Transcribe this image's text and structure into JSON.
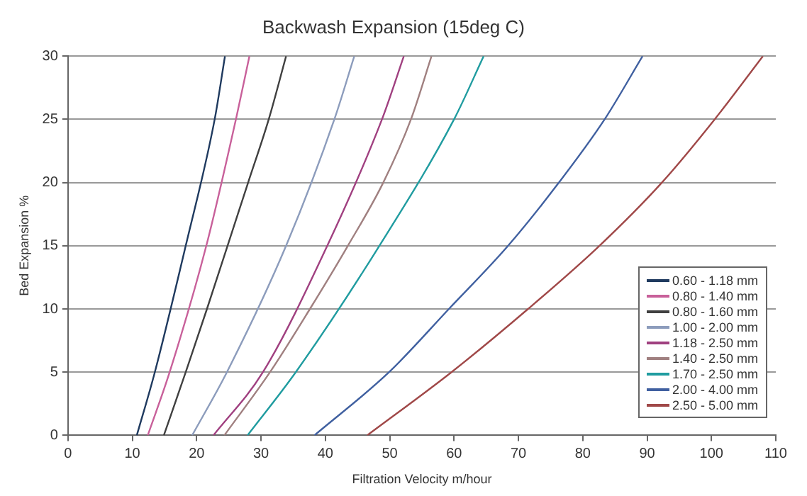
{
  "chart_data": {
    "type": "line",
    "title": "Backwash Expansion (15deg C)",
    "xlabel": "Filtration Velocity m/hour",
    "ylabel": "Bed Expansion %",
    "xlim": [
      0,
      110
    ],
    "xticks": [
      0,
      10,
      20,
      30,
      40,
      50,
      60,
      70,
      80,
      90,
      100,
      110
    ],
    "ylim": [
      0,
      30
    ],
    "yticks": [
      0,
      5,
      10,
      15,
      20,
      25,
      30
    ],
    "grid": "y",
    "legend": "bottom right",
    "marker": "none",
    "line_style": "solid",
    "series": [
      {
        "name": "0.60 - 1.18 mm",
        "color": "#1f3a5f",
        "x": [
          10.7,
          13.5,
          18.3,
          22.8,
          24.4
        ],
        "values": [
          0,
          5,
          15,
          25,
          30
        ]
      },
      {
        "name": "0.80 - 1.40 mm",
        "color": "#c8609a",
        "x": [
          12.4,
          15.8,
          21.5,
          26.1,
          28.2
        ],
        "values": [
          0,
          5,
          15,
          25,
          30
        ]
      },
      {
        "name": "0.80 - 1.60 mm",
        "color": "#404040",
        "x": [
          14.9,
          18.3,
          21.6,
          24.8,
          28.0,
          31.2,
          33.9
        ],
        "values": [
          0,
          5,
          10,
          15,
          20,
          25,
          30
        ]
      },
      {
        "name": "1.00 - 2.00 mm",
        "color": "#8c9cbc",
        "x": [
          19.3,
          24.7,
          33.9,
          41.4,
          44.5
        ],
        "values": [
          0,
          5,
          15,
          25,
          30
        ]
      },
      {
        "name": "1.18 - 2.50 mm",
        "color": "#a04080",
        "x": [
          22.6,
          30.3,
          40.3,
          48.8,
          52.2
        ],
        "values": [
          0,
          5,
          15,
          25,
          30
        ]
      },
      {
        "name": "1.40 - 2.50 mm",
        "color": "#a08080",
        "x": [
          24.3,
          31.4,
          37.6,
          43.5,
          49.0,
          53.3,
          56.5
        ],
        "values": [
          0,
          5,
          10,
          15,
          20,
          25,
          30
        ]
      },
      {
        "name": "1.70 - 2.50 mm",
        "color": "#209ca0",
        "x": [
          27.9,
          35.4,
          48.4,
          60.0,
          64.6
        ],
        "values": [
          0,
          5,
          15,
          25,
          30
        ]
      },
      {
        "name": "2.00 - 4.00 mm",
        "color": "#4060a0",
        "x": [
          38.3,
          49.9,
          59.2,
          68.4,
          76.3,
          83.4,
          89.3
        ],
        "values": [
          0,
          5,
          10,
          15,
          20,
          25,
          30
        ]
      },
      {
        "name": "2.50 - 5.00 mm",
        "color": "#a04848",
        "x": [
          46.5,
          59.6,
          71.5,
          82.6,
          92.3,
          100.5,
          108.0
        ],
        "values": [
          0,
          5,
          10,
          15,
          20,
          25,
          30
        ]
      }
    ]
  }
}
